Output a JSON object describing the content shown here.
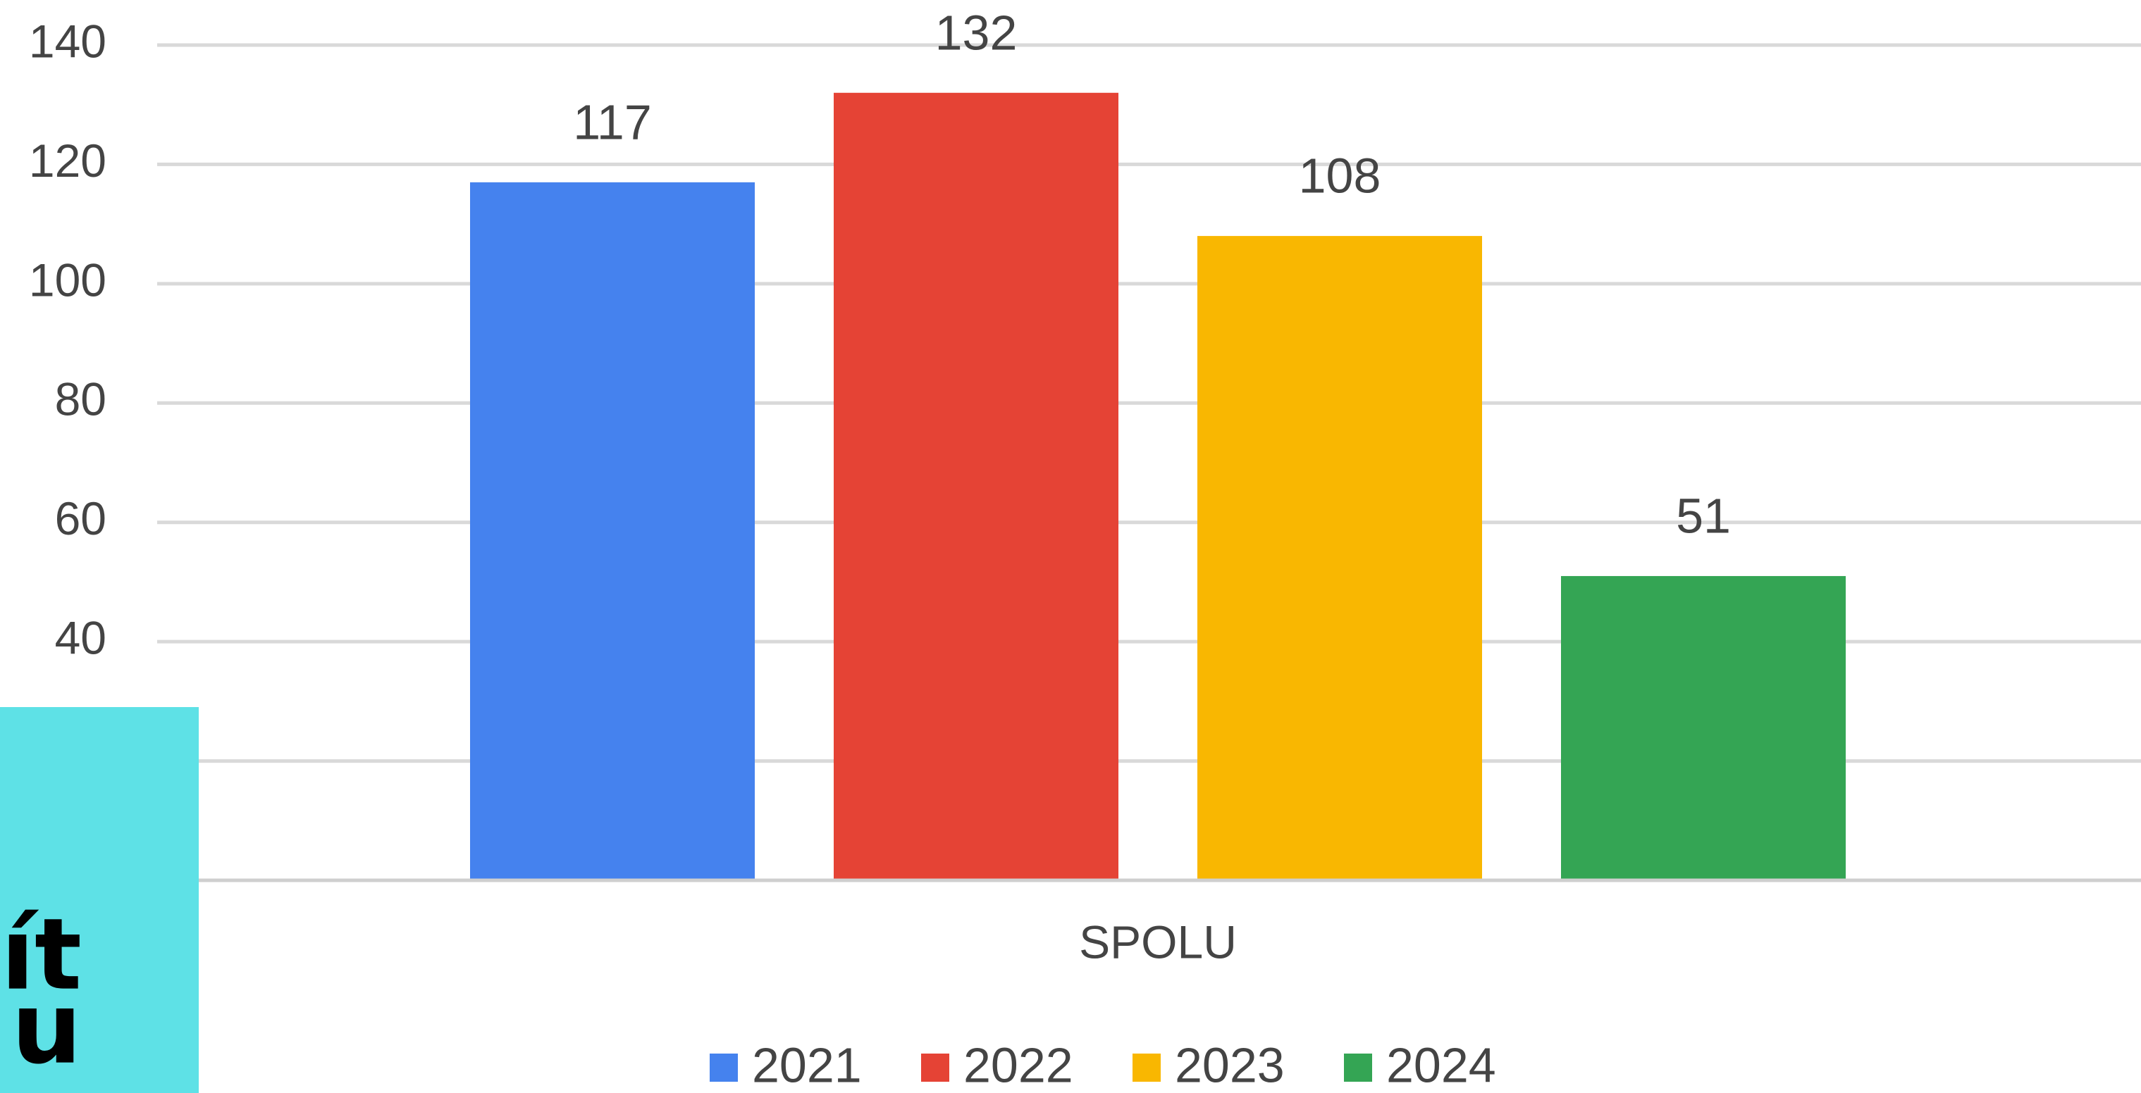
{
  "chart_data": {
    "type": "bar",
    "categories": [
      "SPOLU"
    ],
    "series": [
      {
        "name": "2021",
        "color": "#4582ee",
        "values": [
          117
        ]
      },
      {
        "name": "2022",
        "color": "#e54335",
        "values": [
          132
        ]
      },
      {
        "name": "2023",
        "color": "#f9b701",
        "values": [
          108
        ]
      },
      {
        "name": "2024",
        "color": "#34a554",
        "values": [
          51
        ]
      }
    ],
    "ylim": [
      0,
      140
    ],
    "yticks": [
      0,
      20,
      40,
      60,
      80,
      100,
      120,
      140
    ],
    "grid": true,
    "legend": "bottom"
  },
  "overlay": {
    "lines": [
      "ít",
      "u"
    ]
  }
}
